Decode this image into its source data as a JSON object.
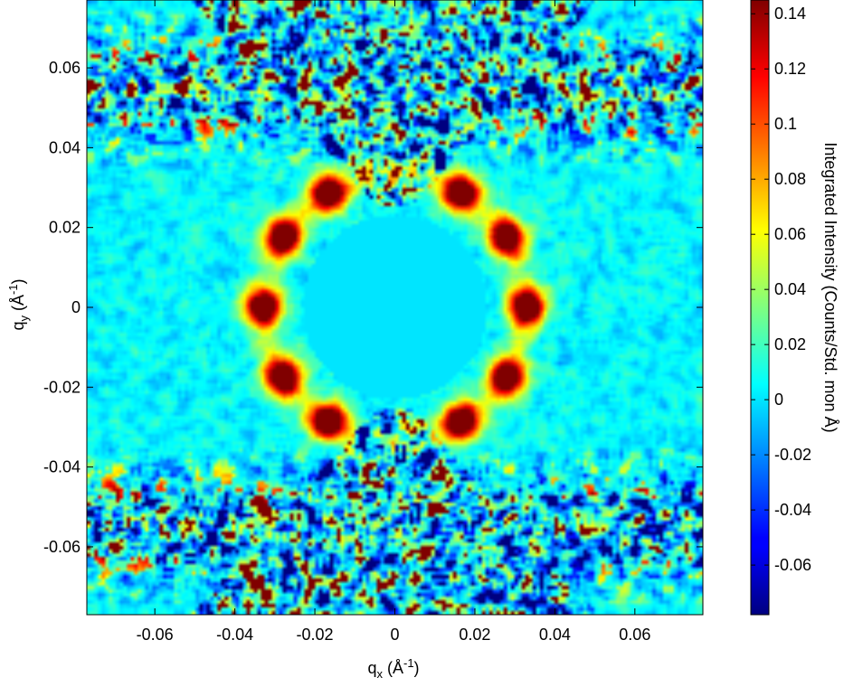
{
  "chart_data": {
    "type": "heatmap",
    "xlabel": {
      "base": "q",
      "sub": "x",
      "unit": " (Å",
      "sup": "-1",
      "close": ")"
    },
    "ylabel": {
      "base": "q",
      "sub": "y",
      "unit": " (Å",
      "sup": "-1",
      "close": ")"
    },
    "colorbar_label": "Integrated Intensity (Counts/Std. mon Å)",
    "xlim": [
      -0.077,
      0.077
    ],
    "ylim": [
      -0.077,
      0.077
    ],
    "x_ticks": [
      -0.06,
      -0.04,
      -0.02,
      0,
      0.02,
      0.04,
      0.06
    ],
    "x_tick_labels": [
      "-0.06",
      "-0.04",
      "-0.02",
      "0",
      "0.02",
      "0.04",
      "0.06"
    ],
    "y_ticks": [
      -0.06,
      -0.04,
      -0.02,
      0,
      0.02,
      0.04,
      0.06
    ],
    "y_tick_labels": [
      "-0.06",
      "-0.04",
      "-0.02",
      "0",
      "0.02",
      "0.04",
      "0.06"
    ],
    "clim": [
      -0.078,
      0.145
    ],
    "colorbar_ticks": [
      -0.06,
      -0.04,
      -0.02,
      0,
      0.02,
      0.04,
      0.06,
      0.08,
      0.1,
      0.12,
      0.14
    ],
    "colorbar_tick_labels": [
      "-0.06",
      "-0.04",
      "-0.02",
      "0",
      "0.02",
      "0.04",
      "0.06",
      "0.08",
      "0.1",
      "0.12",
      "0.14"
    ],
    "colormap": "jet",
    "features": {
      "masked_center_radius": 0.023,
      "ring_radius": 0.033,
      "ring_peak_intensity": 0.14,
      "peak_angles_deg": [
        0,
        32,
        60,
        120,
        148,
        180,
        212,
        240,
        300,
        328
      ],
      "band_center_qy": 0.055,
      "background_level": 0.005,
      "noise_amplitude": 0.02
    }
  }
}
